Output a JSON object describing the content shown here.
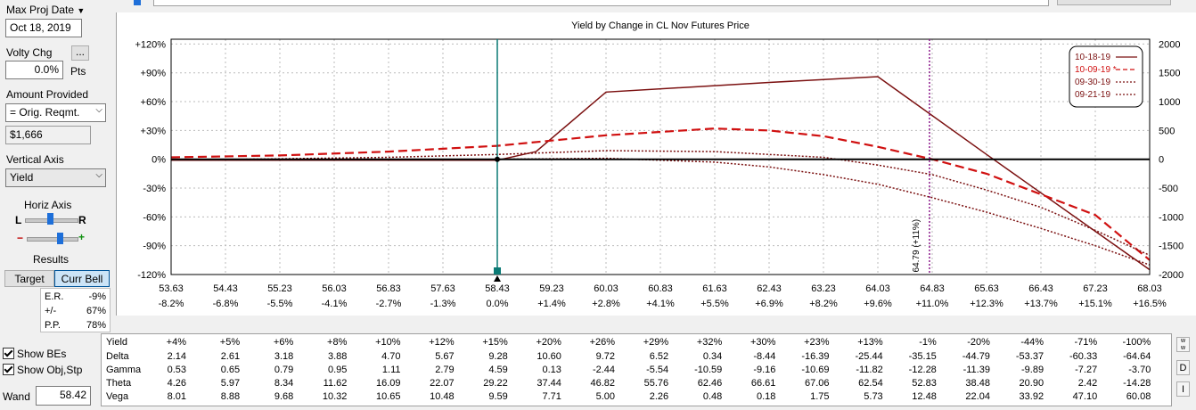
{
  "left_panel": {
    "max_proj_date_label": "Max Proj Date",
    "max_proj_date_value": "Oct 18, 2019",
    "volty_chg_label": "Volty Chg",
    "volty_chg_value": "0.0%",
    "volty_chg_unit": "Pts",
    "volty_ellipsis": "...",
    "amount_provided_label": "Amount Provided",
    "amount_provided_value": "= Orig. Reqmt.",
    "amount_value": "$1,666",
    "vertical_axis_label": "Vertical Axis",
    "vertical_axis_value": "Yield",
    "horiz_axis_label": "Horiz Axis",
    "slider_left": "L",
    "slider_right": "R",
    "slider_minus": "−",
    "slider_plus": "+",
    "results_label": "Results",
    "target_button": "Target",
    "curr_bell_button": "Curr Bell",
    "er_label": "E.R.",
    "er_value": "-9%",
    "pm_label": "+/-",
    "pm_value": "67%",
    "pp_label": "P.P.",
    "pp_value": "78%",
    "show_bes": "Show BEs",
    "show_obj": "Show Obj,Stp",
    "wand_label": "Wand",
    "wand_value": "58.42"
  },
  "colors": {
    "line1": "#7b1010",
    "line2": "#d01010",
    "current_line": "#0b7a75",
    "proj_line": "#8b1a8b",
    "range_magenta": "#cc00cc",
    "range_cyan": "#33cccc"
  },
  "chart_data": {
    "type": "line",
    "title": "Yield by Change in CL Nov Futures Price",
    "x_ticks": [
      "53.63",
      "54.43",
      "55.23",
      "56.03",
      "56.83",
      "57.63",
      "58.43",
      "59.23",
      "60.03",
      "60.83",
      "61.63",
      "62.43",
      "63.23",
      "64.03",
      "64.83",
      "65.63",
      "66.43",
      "67.23",
      "68.03"
    ],
    "x_pct_ticks": [
      "-8.2%",
      "-6.8%",
      "-5.5%",
      "-4.1%",
      "-2.7%",
      "-1.3%",
      "0.0%",
      "+1.4%",
      "+2.8%",
      "+4.1%",
      "+5.5%",
      "+6.9%",
      "+8.2%",
      "+9.6%",
      "+11.0%",
      "+12.3%",
      "+13.7%",
      "+15.1%",
      "+16.5%"
    ],
    "xlim": [
      53.63,
      68.03
    ],
    "y_left_ticks": [
      "+120%",
      "+90%",
      "+60%",
      "+30%",
      "0%",
      "-30%",
      "-60%",
      "-90%",
      "-120%"
    ],
    "ylim_left": [
      -120,
      125
    ],
    "y_right_ticks": [
      "2000",
      "1500",
      "1000",
      "500",
      "0",
      "-500",
      "-1000",
      "-1500",
      "-2000"
    ],
    "ylim_right": [
      -2000,
      2083
    ],
    "grid": true,
    "legend_position": "top-right",
    "current_price": 58.43,
    "projection_price": 64.79,
    "projection_label": "64.79 (+11%)",
    "series": [
      {
        "name": "10-18-19",
        "style": "solid",
        "color": "#7b1010",
        "x": [
          53.63,
          58.43,
          59.0,
          60.03,
          62.43,
          64.03,
          65.63,
          68.03
        ],
        "y": [
          -1,
          -1,
          8,
          70,
          80,
          86,
          5,
          -115
        ]
      },
      {
        "name": "10-09-19 *",
        "style": "dashed",
        "color": "#d01010",
        "x": [
          53.63,
          55.23,
          56.83,
          58.43,
          60.03,
          61.63,
          62.43,
          63.23,
          64.03,
          64.83,
          65.63,
          67.23,
          68.03
        ],
        "y": [
          2,
          4,
          8,
          14,
          25,
          32,
          30,
          24,
          13,
          0,
          -15,
          -58,
          -105
        ]
      },
      {
        "name": "09-30-19",
        "style": "dotted",
        "color": "#7b1010",
        "x": [
          53.63,
          56.83,
          58.43,
          60.03,
          61.63,
          63.23,
          64.03,
          64.83,
          65.63,
          66.43,
          67.23,
          68.03
        ],
        "y": [
          -1,
          2,
          5,
          9,
          8,
          2,
          -6,
          -16,
          -32,
          -50,
          -74,
          -100
        ]
      },
      {
        "name": "09-21-19",
        "style": "dotted",
        "color": "#7b1010",
        "x": [
          53.63,
          56.83,
          58.43,
          60.03,
          61.63,
          62.43,
          63.23,
          64.03,
          64.83,
          65.63,
          66.43,
          67.23,
          68.03
        ],
        "y": [
          -1,
          -0.5,
          0,
          1,
          -3,
          -8,
          -16,
          -26,
          -40,
          -55,
          -72,
          -90,
          -110
        ]
      }
    ]
  },
  "greeks": {
    "row_labels": [
      "Yield",
      "Delta",
      "Gamma",
      "Theta",
      "Vega"
    ],
    "columns": [
      [
        "+4%",
        "2.14",
        "0.53",
        "4.26",
        "8.01"
      ],
      [
        "+5%",
        "2.61",
        "0.65",
        "5.97",
        "8.88"
      ],
      [
        "+6%",
        "3.18",
        "0.79",
        "8.34",
        "9.68"
      ],
      [
        "+8%",
        "3.88",
        "0.95",
        "11.62",
        "10.32"
      ],
      [
        "+10%",
        "4.70",
        "1.11",
        "16.09",
        "10.65"
      ],
      [
        "+12%",
        "5.67",
        "2.79",
        "22.07",
        "10.48"
      ],
      [
        "+15%",
        "9.28",
        "4.59",
        "29.22",
        "9.59"
      ],
      [
        "+20%",
        "10.60",
        "0.13",
        "37.44",
        "7.71"
      ],
      [
        "+26%",
        "9.72",
        "-2.44",
        "46.82",
        "5.00"
      ],
      [
        "+29%",
        "6.52",
        "-5.54",
        "55.76",
        "2.26"
      ],
      [
        "+32%",
        "0.34",
        "-10.59",
        "62.46",
        "0.48"
      ],
      [
        "+30%",
        "-8.44",
        "-9.16",
        "66.61",
        "0.18"
      ],
      [
        "+23%",
        "-16.39",
        "-10.69",
        "67.06",
        "1.75"
      ],
      [
        "+13%",
        "-25.44",
        "-11.82",
        "62.54",
        "5.73"
      ],
      [
        "-1%",
        "-35.15",
        "-12.28",
        "52.83",
        "12.48"
      ],
      [
        "-20%",
        "-44.79",
        "-11.39",
        "38.48",
        "22.04"
      ],
      [
        "-44%",
        "-53.37",
        "-9.89",
        "20.90",
        "33.92"
      ],
      [
        "-71%",
        "-60.33",
        "-7.27",
        "2.42",
        "47.10"
      ],
      [
        "-100%",
        "-64.64",
        "-3.70",
        "-14.28",
        "60.08"
      ]
    ],
    "side_buttons": [
      "D",
      "I"
    ]
  }
}
